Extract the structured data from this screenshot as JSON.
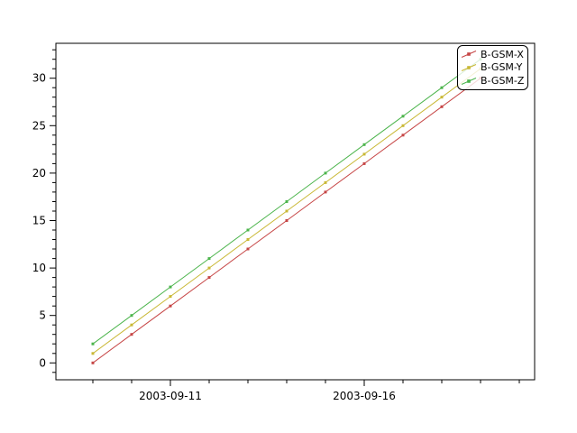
{
  "figure": {
    "background": "#ffffff",
    "axis_color": "#000000"
  },
  "chart_data": {
    "type": "line",
    "title": "",
    "xlabel": "",
    "ylabel": "",
    "grid": false,
    "x": [
      "2003-09-09",
      "2003-09-10",
      "2003-09-11",
      "2003-09-12",
      "2003-09-13",
      "2003-09-14",
      "2003-09-15",
      "2003-09-16",
      "2003-09-17",
      "2003-09-18",
      "2003-09-19"
    ],
    "series": [
      {
        "name": "B-GSM-X",
        "color": "#c64545",
        "values": [
          0,
          3,
          6,
          9,
          12,
          15,
          18,
          21,
          24,
          27,
          30
        ]
      },
      {
        "name": "B-GSM-Y",
        "color": "#c9b835",
        "values": [
          1,
          4,
          7,
          10,
          13,
          16,
          19,
          22,
          25,
          28,
          31
        ]
      },
      {
        "name": "B-GSM-Z",
        "color": "#4bb44b",
        "values": [
          2,
          5,
          8,
          11,
          14,
          17,
          20,
          23,
          26,
          29,
          32
        ]
      }
    ],
    "x_tick_days": [
      "2003-09-09",
      "2003-09-10",
      "2003-09-11",
      "2003-09-12",
      "2003-09-13",
      "2003-09-14",
      "2003-09-15",
      "2003-09-16",
      "2003-09-17",
      "2003-09-18",
      "2003-09-19",
      "2003-09-20"
    ],
    "x_major_tick_labels": [
      "2003-09-11",
      "2003-09-16"
    ],
    "yticks_major": [
      0,
      5,
      10,
      15,
      20,
      25,
      30
    ],
    "y_minor_step": 1,
    "ylim": [
      -1.78,
      33.68
    ],
    "legend_position": "top-right"
  }
}
